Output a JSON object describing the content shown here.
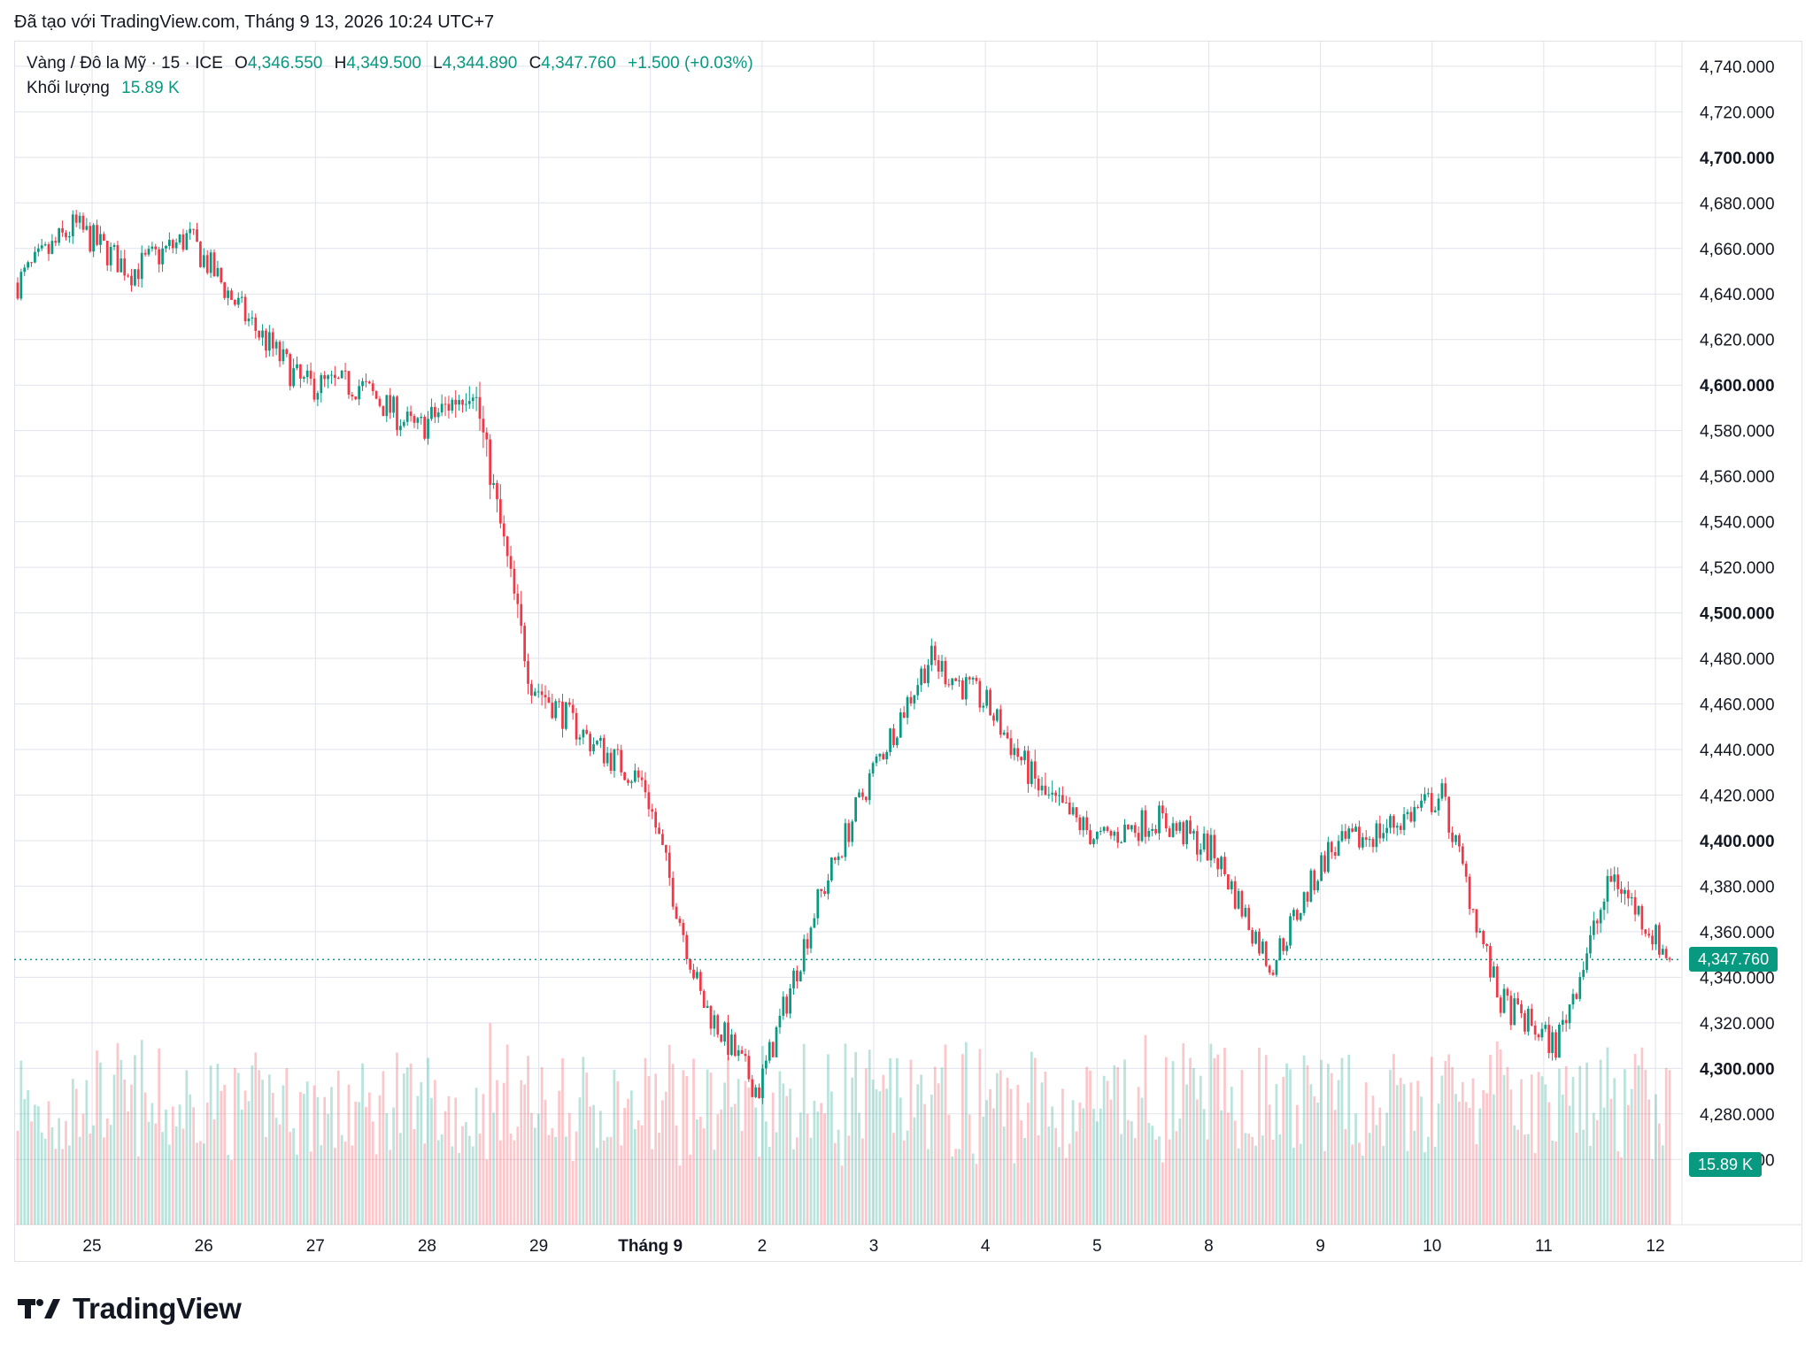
{
  "caption": "Đã tạo với TradingView.com, Tháng 9 13, 2026 10:24 UTC+7",
  "brand": {
    "name": "TradingView"
  },
  "legend": {
    "symbol": "Vàng / Đô la Mỹ · 15 · ICE",
    "o_label": "O",
    "o_value": "4,346.550",
    "h_label": "H",
    "h_value": "4,349.500",
    "l_label": "L",
    "l_value": "4,344.890",
    "c_label": "C",
    "c_value": "4,347.760",
    "change": "+1.500 (+0.03%)",
    "volume_label": "Khối lượng",
    "volume_value": "15.89 K"
  },
  "price_tag": "4,347.760",
  "volume_tag": "15.89 K",
  "colors": {
    "up": "#089981",
    "down": "#f23645",
    "grid": "#e0e3eb",
    "tag": "#089981"
  },
  "chart_data": {
    "type": "candlestick",
    "symbol": "Vàng / Đô la Mỹ",
    "interval": "15",
    "ylim": [
      4250,
      4745
    ],
    "y_ticks": [
      "4,740.000",
      "4,720.000",
      "4,700.000",
      "4,680.000",
      "4,660.000",
      "4,640.000",
      "4,620.000",
      "4,600.000",
      "4,580.000",
      "4,560.000",
      "4,540.000",
      "4,520.000",
      "4,500.000",
      "4,480.000",
      "4,460.000",
      "4,440.000",
      "4,420.000",
      "4,400.000",
      "4,380.000",
      "4,360.000",
      "4,340.000",
      "4,320.000",
      "4,300.000",
      "4,280.000",
      "4,260.000"
    ],
    "y_ticks_bold": [
      "4,700.000",
      "4,600.000",
      "4,500.000",
      "4,400.000",
      "4,300.000"
    ],
    "x_labels": [
      "25",
      "26",
      "27",
      "28",
      "29",
      "Tháng 9",
      "2",
      "3",
      "4",
      "5",
      "8",
      "9",
      "10",
      "11",
      "12"
    ],
    "x_labels_bold": [
      "Tháng 9"
    ],
    "last_price": 4347.76,
    "ohlc_last": {
      "open": 4346.55,
      "high": 4349.5,
      "low": 4344.89,
      "close": 4347.76,
      "change": 1.5,
      "change_pct": 0.03
    },
    "volume_last": "15.89 K",
    "x": [
      "25",
      "25.5",
      "26",
      "26.5",
      "27",
      "27.5",
      "28",
      "28.5",
      "29",
      "29.5",
      "Tháng 9",
      "1.5",
      "2",
      "2.5",
      "3",
      "3.5",
      "4",
      "4.5",
      "5",
      "5.5",
      "8",
      "8.5",
      "9",
      "9.5",
      "10",
      "10.5",
      "11",
      "11.5",
      "12",
      "12.2"
    ],
    "close": [
      4645,
      4670,
      4650,
      4665,
      4630,
      4600,
      4600,
      4580,
      4600,
      4470,
      4445,
      4425,
      4330,
      4290,
      4370,
      4430,
      4480,
      4460,
      4420,
      4400,
      4410,
      4395,
      4345,
      4395,
      4405,
      4420,
      4330,
      4310,
      4385,
      4348
    ],
    "high": [
      4665,
      4695,
      4670,
      4675,
      4645,
      4640,
      4615,
      4615,
      4632,
      4480,
      4462,
      4460,
      4345,
      4330,
      4400,
      4445,
      4510,
      4490,
      4448,
      4415,
      4440,
      4410,
      4360,
      4415,
      4432,
      4435,
      4360,
      4355,
      4402,
      4372
    ],
    "low": [
      4630,
      4640,
      4615,
      4630,
      4600,
      4570,
      4565,
      4570,
      4520,
      4400,
      4420,
      4410,
      4290,
      4285,
      4355,
      4415,
      4460,
      4455,
      4365,
      4385,
      4395,
      4360,
      4340,
      4370,
      4375,
      4395,
      4325,
      4300,
      4325,
      4342
    ]
  }
}
